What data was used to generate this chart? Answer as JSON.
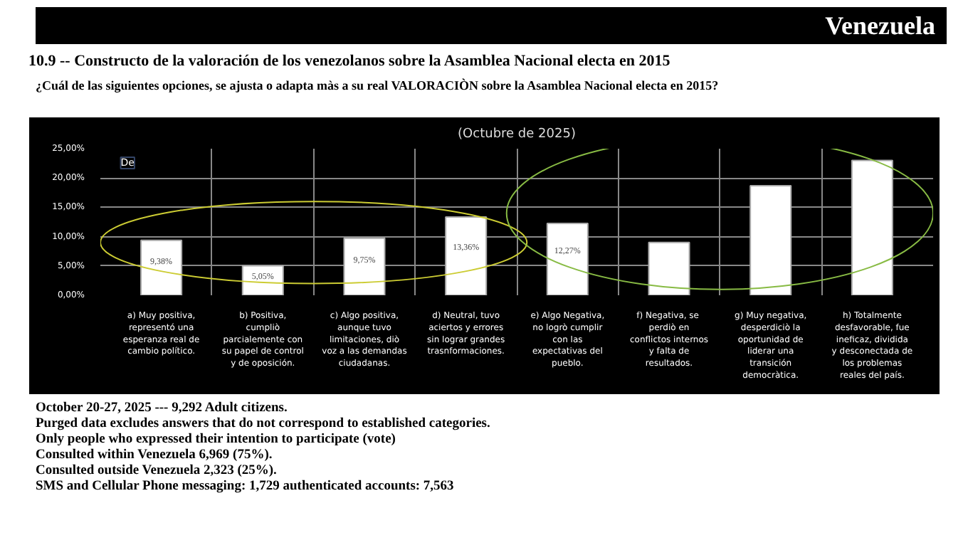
{
  "chart_data": {
    "type": "bar",
    "title": "10.9 -- Constructo de la valoración de los venezolanos sobre la Asamblea Nacional electa en 2015",
    "subtitle": "¿Cuál de las siguientes opciones, se ajusta o adapta màs a su real VALORACIÒN sobre la Asamblea Nacional electa en 2015?",
    "categories": [
      "a) Muy positiva, representó una esperanza real de cambio político.",
      "b) Positiva, cumpliò parcialemente con su papel de control y de oposición.",
      "c) Algo positiva, aunque tuvo limitaciones, diò voz a las demandas ciudadanas.",
      "d) Neutral, tuvo aciertos y errores sin lograr grandes trasnformaciones.",
      "e) Algo Negativa, no logrò cumplir con las expectativas del pueblo.",
      "f)  Negativa, se perdiò en conflictos internos y falta de resultados.",
      "g) Muy negativa, desperdiciò la oportunidad de liderar una transición democràtica.",
      "h) Totalmente desfavorable, fue ineficaz, dividida y desconectada de los problemas reales del país."
    ],
    "values": [
      9.38,
      5.05,
      9.75,
      13.36,
      12.27,
      9.0,
      18.7,
      23.0
    ],
    "value_labels": [
      "9,38%",
      "5,05%",
      "9,75%",
      "13,36%",
      "12,27%",
      null,
      null,
      null
    ],
    "color": "#ffffff",
    "ylim": [
      0,
      25
    ],
    "yticks": [
      {
        "value": 0,
        "label": "0,00%"
      },
      {
        "value": 5,
        "label": "5,00%"
      },
      {
        "value": 10,
        "label": "10,00%"
      },
      {
        "value": 15,
        "label": "15,00%"
      },
      {
        "value": 20,
        "label": "20,00%"
      },
      {
        "value": 25,
        "label": "25,00%"
      }
    ],
    "grid": true,
    "annotations": [
      "Venezuela",
      "(Octubre de 2025)",
      "De",
      "October 20-27, 2025 --- 9,292 Adult citizens.",
      "Purged data excludes answers that do not correspond to established categories.",
      "Only people who expressed their intention to participate (vote)",
      "Consulted within Venezuela 6,969 (75%).",
      "Consulted outside Venezuela 2,323 (25%).",
      "SMS and Cellular Phone messaging: 1,729 authenticated accounts: 7,563"
    ]
  }
}
